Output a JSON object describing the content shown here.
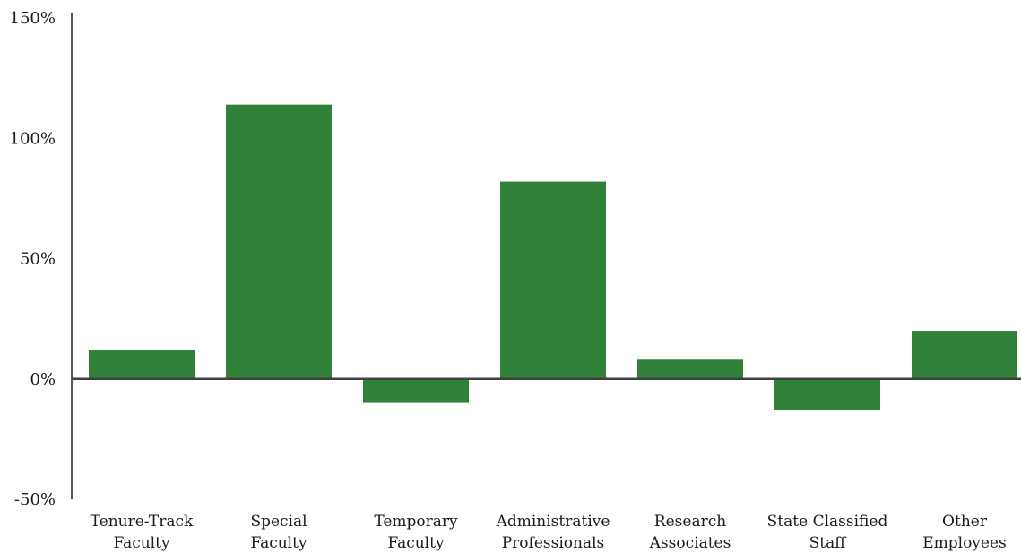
{
  "chart_data": {
    "type": "bar",
    "title": "",
    "xlabel": "",
    "ylabel": "",
    "ylim": [
      -50,
      150
    ],
    "yticks": [
      150,
      100,
      50,
      0,
      -50
    ],
    "ytick_labels": [
      "150%",
      "100%",
      "50%",
      "0%",
      "-50%"
    ],
    "grid": false,
    "legend": "none",
    "bar_color": "#318139",
    "categories": [
      [
        "Tenure-Track",
        "Faculty"
      ],
      [
        "Special",
        "Faculty"
      ],
      [
        "Temporary",
        "Faculty"
      ],
      [
        "Administrative",
        "Professionals"
      ],
      [
        "Research",
        "Associates"
      ],
      [
        "State Classified",
        "Staff"
      ],
      [
        "Other",
        "Employees"
      ]
    ],
    "values": [
      12,
      114,
      -10,
      82,
      8,
      -13,
      20
    ]
  }
}
